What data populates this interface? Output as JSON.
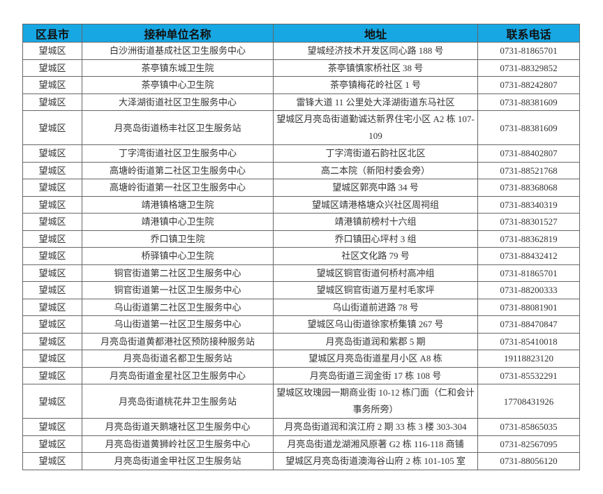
{
  "table": {
    "header_color": "#17a7e3",
    "headers": [
      "区县市",
      "接种单位名称",
      "地址",
      "联系电话"
    ],
    "rows": [
      [
        "望城区",
        "白沙洲街道基成社区卫生服务中心",
        "望城经济技术开发区同心路 188 号",
        "0731-81865701"
      ],
      [
        "望城区",
        "茶亭镇东城卫生院",
        "茶亭镇慎家桥社区 38 号",
        "0731-88329852"
      ],
      [
        "望城区",
        "茶亭镇中心卫生院",
        "茶亭镇梅花岭社区 1 号",
        "0731-88242807"
      ],
      [
        "望城区",
        "大泽湖街道社区卫生服务中心",
        "雷锋大道 11 公里处大泽湖街道东马社区",
        "0731-88381609"
      ],
      [
        "望城区",
        "月亮岛街道杨丰社区卫生服务站",
        "望城区月亮岛街道勤诚达新界住宅小区 A2 栋 107-109",
        "0731-88381609"
      ],
      [
        "望城区",
        "丁字湾街道社区卫生服务中心",
        "丁字湾街道石韵社区北区",
        "0731-88402807"
      ],
      [
        "望城区",
        "高塘岭街道第二社区卫生服务中心",
        "高二本院（新阳村委会旁）",
        "0731-88521768"
      ],
      [
        "望城区",
        "高塘岭街道第一社区卫生服务中心",
        "望城区郭亮中路 34 号",
        "0731-88368068"
      ],
      [
        "望城区",
        "靖港镇格塘卫生院",
        "望城区靖港格塘众兴社区周祠组",
        "0731-88340319"
      ],
      [
        "望城区",
        "靖港镇中心卫生院",
        "靖港镇前榜村十六组",
        "0731-88301527"
      ],
      [
        "望城区",
        "乔口镇卫生院",
        "乔口镇田心坪村 3 组",
        "0731-88362819"
      ],
      [
        "望城区",
        "桥驿镇中心卫生院",
        "社区文化路 79 号",
        "0731-88432412"
      ],
      [
        "望城区",
        "铜官街道第二社区卫生服务中心",
        "望城区铜官街道何桥村高冲组",
        "0731-81865701"
      ],
      [
        "望城区",
        "铜官街道第一社区卫生服务中心",
        "望城区铜官街道万星村毛家坪",
        "0731-88200333"
      ],
      [
        "望城区",
        "乌山街道第二社区卫生服务中心",
        "乌山街道前进路 78 号",
        "0731-88081901"
      ],
      [
        "望城区",
        "乌山街道第一社区卫生服务中心",
        "望城区乌山街道徐家桥集镇 267 号",
        "0731-88470847"
      ],
      [
        "望城区",
        "月亮岛街道黄都港社区预防接种服务站",
        "月亮岛街道润和紫郡 5 期",
        "0731-85410018"
      ],
      [
        "望城区",
        "月亮岛街道名都卫生服务站",
        "望城区月亮岛街道星月小区 A8 栋",
        "19118823120"
      ],
      [
        "望城区",
        "月亮岛街道金星社区卫生服务中心",
        "月亮岛街道三润金街 17 栋 108 号",
        "0731-85532291"
      ],
      [
        "望城区",
        "月亮岛街道桃花井卫生服务站",
        "望城区玫瑰园一期商业街 10-12 栋门面（仁和会计事务所旁）",
        "17708431926"
      ],
      [
        "望城区",
        "月亮岛街道天鹅塘社区卫生服务中心",
        "月亮岛街道润和滨江府 2 期 33 栋 3 楼 303-304",
        "0731-85865035"
      ],
      [
        "望城区",
        "月亮岛街道黄狮岭社区卫生服务中心",
        "月亮岛街道龙湖湘风原著 G2 栋 116-118 商铺",
        "0731-82567095"
      ],
      [
        "望城区",
        "月亮岛街道金甲社区卫生服务站",
        "望城区月亮岛街道澳海谷山府 2 栋 101-105 室",
        "0731-88056120"
      ]
    ]
  }
}
